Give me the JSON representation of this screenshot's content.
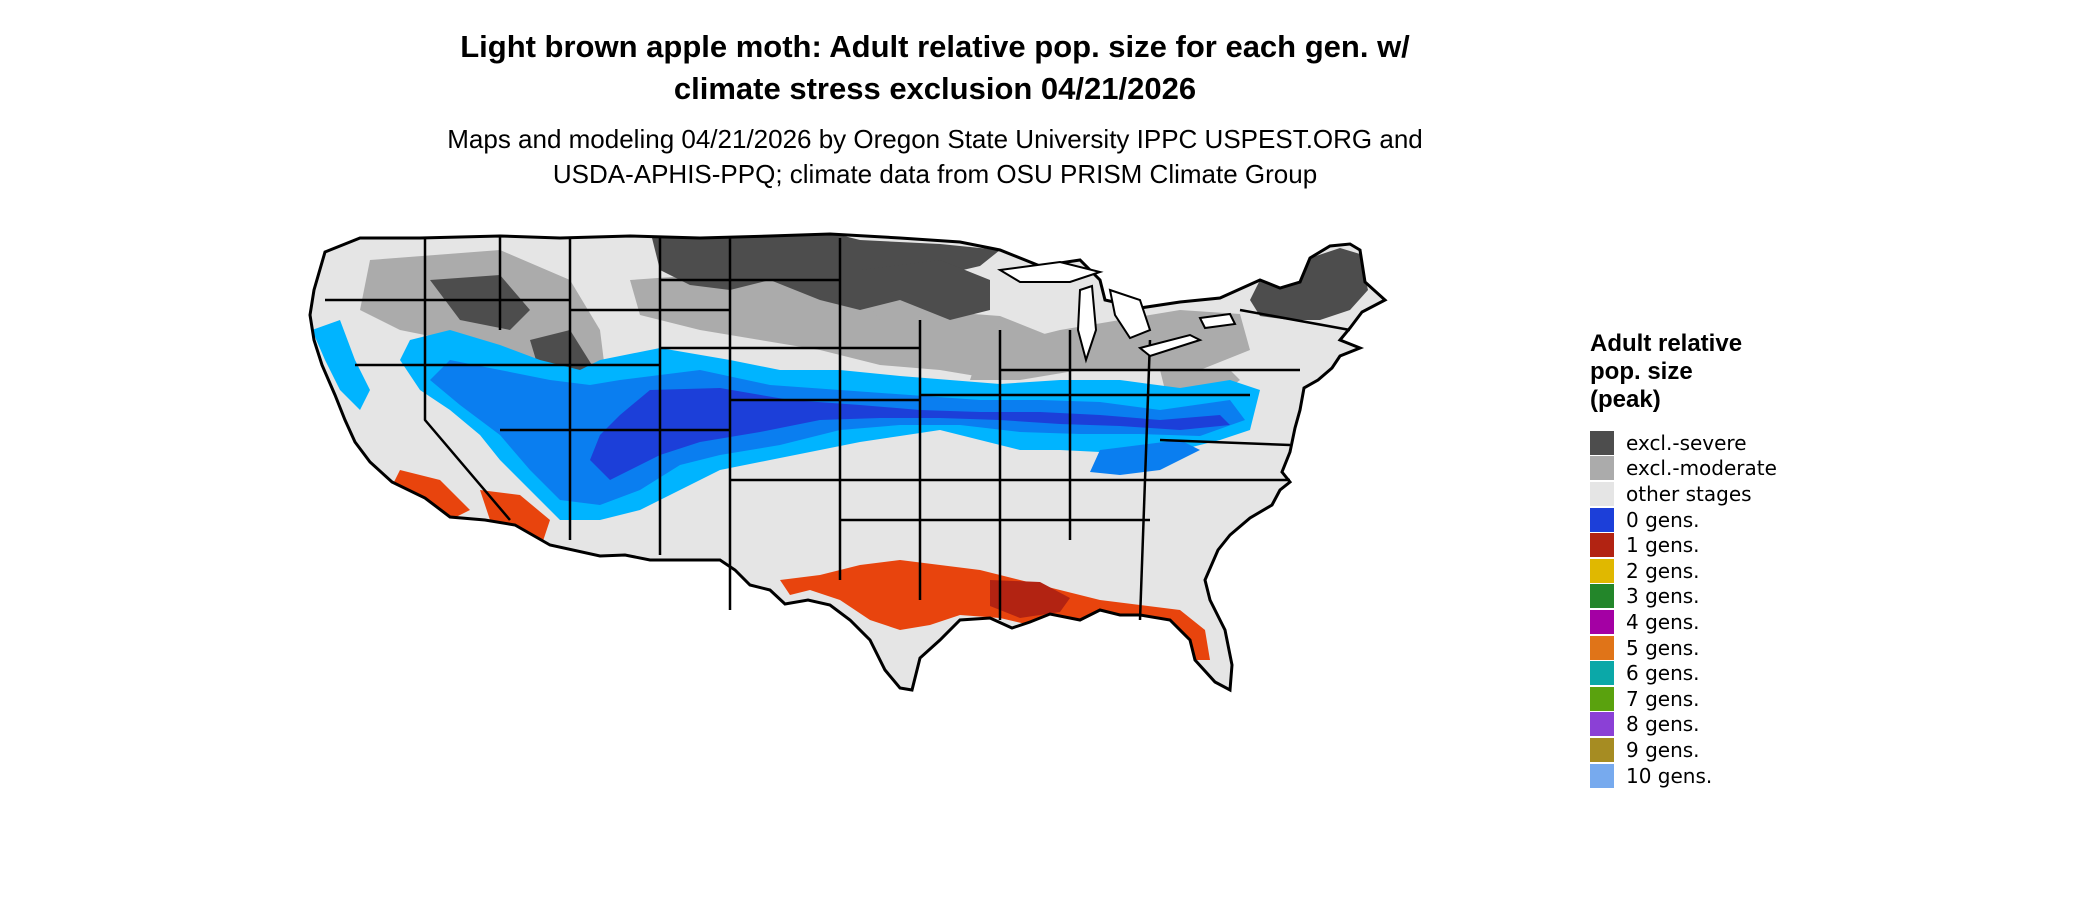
{
  "title": {
    "line1": "Light brown apple moth: Adult relative pop. size for each gen. w/",
    "line2": "climate stress exclusion 04/21/2026"
  },
  "subtitle": {
    "line1": "Maps and modeling 04/21/2026 by Oregon State University IPPC USPEST.ORG and",
    "line2": "USDA-APHIS-PPQ; climate data from OSU PRISM Climate Group"
  },
  "legend": {
    "title_lines": [
      "Adult relative",
      "pop. size",
      "(peak)"
    ],
    "items": [
      {
        "label": "excl.-severe",
        "color": "#4d4d4d"
      },
      {
        "label": "excl.-moderate",
        "color": "#ababab"
      },
      {
        "label": "other stages",
        "color": "#e5e5e5"
      },
      {
        "label": "0 gens.",
        "color": "#1c3fd9"
      },
      {
        "label": "1 gens.",
        "color": "#b22312"
      },
      {
        "label": "2 gens.",
        "color": "#e0b800"
      },
      {
        "label": "3 gens.",
        "color": "#23862a"
      },
      {
        "label": "4 gens.",
        "color": "#a400a4"
      },
      {
        "label": "5 gens.",
        "color": "#e07418"
      },
      {
        "label": "6 gens.",
        "color": "#0ba8a8"
      },
      {
        "label": "7 gens.",
        "color": "#5aa20e"
      },
      {
        "label": "8 gens.",
        "color": "#8b40d6"
      },
      {
        "label": "9 gens.",
        "color": "#a68c22"
      },
      {
        "label": "10 gens.",
        "color": "#77aaee"
      }
    ]
  },
  "map_colors": {
    "land": "#e5e5e5",
    "severe": "#4d4d4d",
    "moderate": "#ababab",
    "gen0_light": "#00b4ff",
    "gen0_mid": "#0a7ef0",
    "gen0_dark": "#1c3fd9",
    "gen_warm": "#e8440d",
    "gen_warm_dark": "#b22312",
    "border": "#000000"
  }
}
